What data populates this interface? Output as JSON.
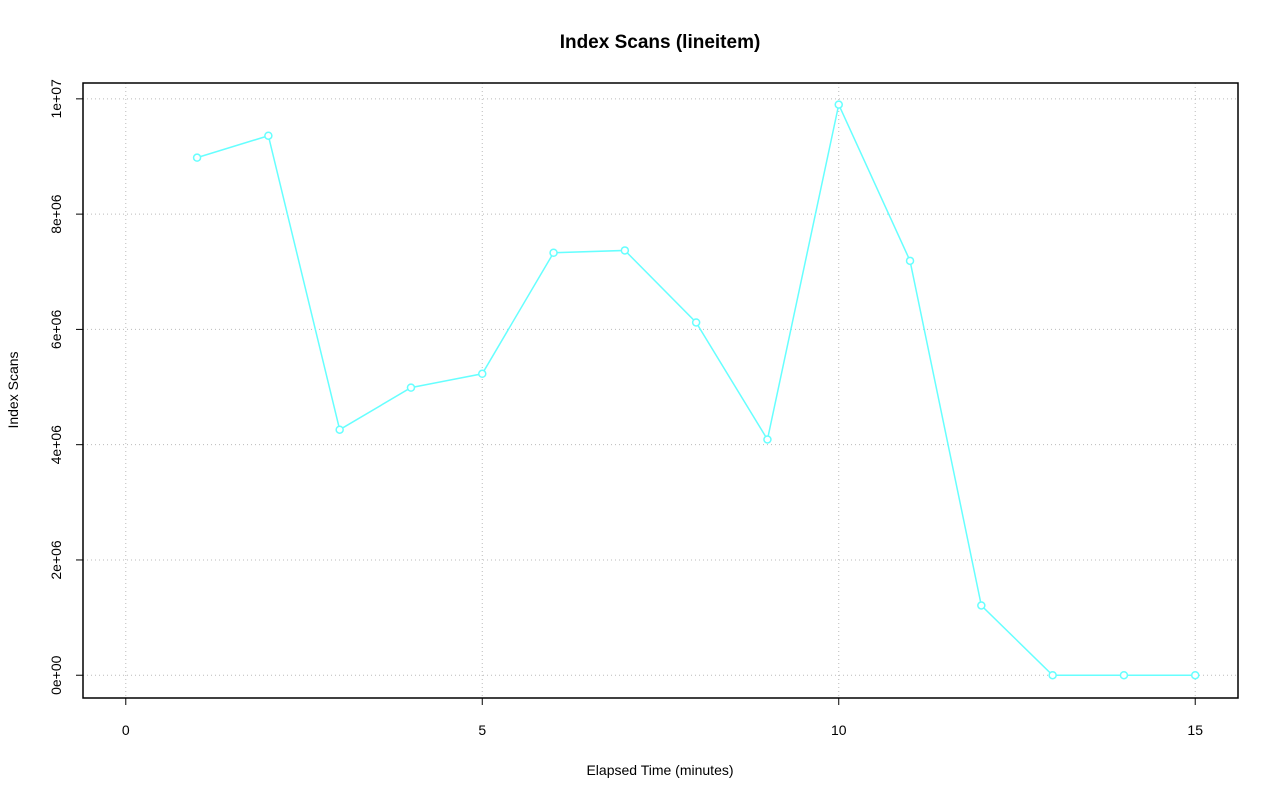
{
  "chart_data": {
    "type": "line",
    "title": "Index Scans (lineitem)",
    "x_label": "Elapsed Time (minutes)",
    "y_label": "Index Scans",
    "x": [
      1,
      2,
      3,
      4,
      5,
      6,
      7,
      8,
      9,
      10,
      11,
      12,
      13,
      14,
      15
    ],
    "series": [
      {
        "name": "lineitem",
        "color": "#66ffff",
        "values": [
          8980000,
          9360000,
          4260000,
          4990000,
          5230000,
          7330000,
          7370000,
          6120000,
          4090000,
          9900000,
          7190000,
          1210000,
          0,
          0,
          0
        ]
      }
    ],
    "xlim": [
      -0.6,
      15.6
    ],
    "xticks": [
      0,
      5,
      10,
      15
    ],
    "ylim": [
      -395000,
      10275000
    ],
    "yticks": [
      {
        "value": 0,
        "label": "0e+00"
      },
      {
        "value": 2000000,
        "label": "2e+06"
      },
      {
        "value": 4000000,
        "label": "4e+06"
      },
      {
        "value": 6000000,
        "label": "6e+06"
      },
      {
        "value": 8000000,
        "label": "8e+06"
      },
      {
        "value": 10000000,
        "label": "1e+07"
      }
    ],
    "grid": true
  }
}
